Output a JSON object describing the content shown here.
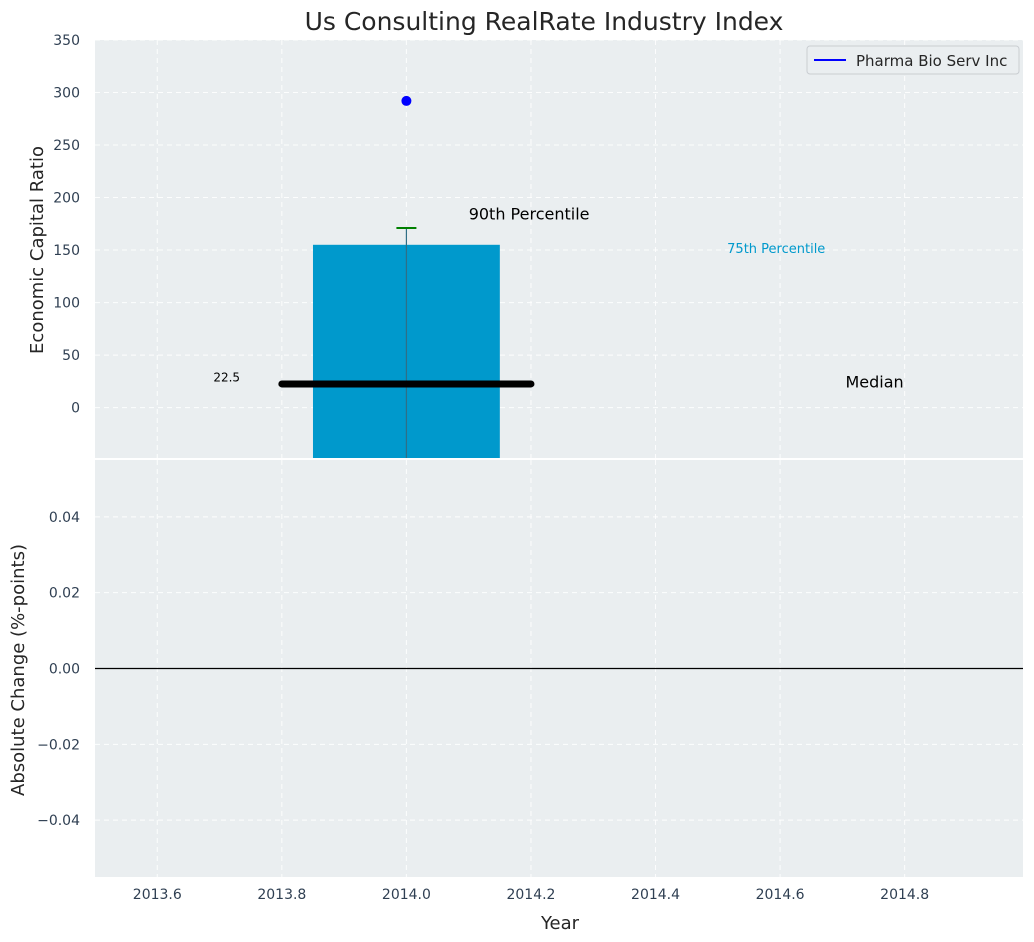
{
  "chart_data": {
    "type": "bar",
    "title": "Us Consulting RealRate Industry Index",
    "xlabel": "Year",
    "x_ticks": [
      2013.6,
      2013.8,
      2014.0,
      2014.2,
      2014.4,
      2014.6,
      2014.8
    ],
    "x_tick_labels": [
      "2013.6",
      "2013.8",
      "2014.0",
      "2014.2",
      "2014.4",
      "2014.6",
      "2014.8"
    ],
    "xlim": [
      2013.5,
      2014.99
    ],
    "top_panel": {
      "ylabel": "Economic Capital Ratio",
      "ylim": [
        -48,
        350
      ],
      "y_ticks": [
        0,
        50,
        100,
        150,
        200,
        250,
        300,
        350
      ],
      "bar": {
        "x": 2014.0,
        "width": 0.3,
        "bottom": -48,
        "top": 155,
        "color": "#0099cc"
      },
      "whisker": {
        "x": 2014.0,
        "bottom": -48,
        "top": 171,
        "cap_color": "#008000"
      },
      "median_line": {
        "x_start": 2013.8,
        "x_end": 2014.2,
        "value": 22.5
      },
      "company_point": {
        "name": "Pharma Bio Serv Inc",
        "x": 2014.0,
        "value": 292,
        "color": "#0000ff"
      },
      "annotations": [
        {
          "text": "90th Percentile",
          "x": 2014.1,
          "y": 179,
          "color": "#000000",
          "size": "large"
        },
        {
          "text": "75th Percentile",
          "x": 2014.515,
          "y": 147,
          "color": "#0099cc",
          "size": "small"
        },
        {
          "text": "Median",
          "x": 2014.705,
          "y": 19,
          "color": "#000000",
          "size": "large"
        },
        {
          "text": "22.5",
          "x": 2013.69,
          "y": 25,
          "color": "#000000",
          "size": "xsmall"
        }
      ],
      "legend": {
        "label": "Pharma Bio Serv Inc",
        "position": "upper right"
      }
    },
    "bottom_panel": {
      "ylabel": "Absolute Change (%-points)",
      "ylim": [
        -0.055,
        0.055
      ],
      "y_ticks": [
        -0.04,
        -0.02,
        0.0,
        0.02,
        0.04
      ],
      "y_tick_labels": [
        "−0.04",
        "−0.02",
        "0.00",
        "0.02",
        "0.04"
      ],
      "zero_line": 0.0
    }
  }
}
